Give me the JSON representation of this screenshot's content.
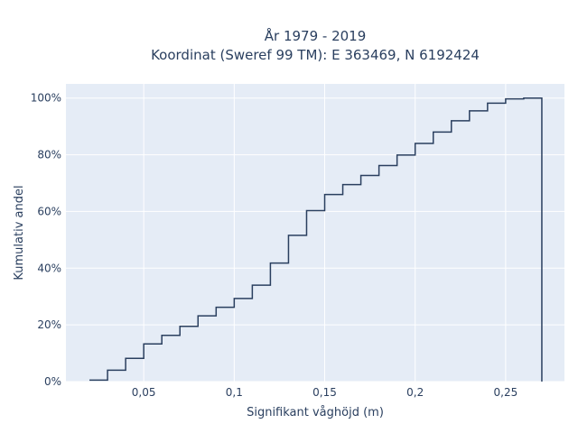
{
  "chart_data": {
    "type": "line",
    "step": true,
    "title": "År 1979 - 2019",
    "subtitle": "Koordinat (Sweref 99 TM): E 363469, N 6192424",
    "xlabel": "Signifikant våghöjd (m)",
    "ylabel": "Kumulativ andel",
    "xlim": [
      0.007,
      0.2825
    ],
    "ylim": [
      0,
      1.05
    ],
    "x_ticks": [
      {
        "value": 0.05,
        "label": "0,05"
      },
      {
        "value": 0.1,
        "label": "0,1"
      },
      {
        "value": 0.15,
        "label": "0,15"
      },
      {
        "value": 0.2,
        "label": "0,2"
      },
      {
        "value": 0.25,
        "label": "0,25"
      }
    ],
    "y_ticks": [
      {
        "value": 0,
        "label": "0%"
      },
      {
        "value": 0.2,
        "label": "20%"
      },
      {
        "value": 0.4,
        "label": "40%"
      },
      {
        "value": 0.6,
        "label": "60%"
      },
      {
        "value": 0.8,
        "label": "80%"
      },
      {
        "value": 1.0,
        "label": "100%"
      }
    ],
    "grid": true,
    "colors": {
      "line": "#2a3f5f",
      "plot_bg": "#e5ecf6",
      "grid": "#ffffff",
      "text": "#2a3f5f"
    },
    "bins": [
      {
        "x0": 0.02,
        "x1": 0.03,
        "y": 0.005
      },
      {
        "x0": 0.03,
        "x1": 0.04,
        "y": 0.04
      },
      {
        "x0": 0.04,
        "x1": 0.05,
        "y": 0.082
      },
      {
        "x0": 0.05,
        "x1": 0.06,
        "y": 0.133
      },
      {
        "x0": 0.06,
        "x1": 0.07,
        "y": 0.163
      },
      {
        "x0": 0.07,
        "x1": 0.08,
        "y": 0.195
      },
      {
        "x0": 0.08,
        "x1": 0.09,
        "y": 0.232
      },
      {
        "x0": 0.09,
        "x1": 0.1,
        "y": 0.262
      },
      {
        "x0": 0.1,
        "x1": 0.11,
        "y": 0.293
      },
      {
        "x0": 0.11,
        "x1": 0.12,
        "y": 0.34
      },
      {
        "x0": 0.12,
        "x1": 0.13,
        "y": 0.418
      },
      {
        "x0": 0.13,
        "x1": 0.14,
        "y": 0.516
      },
      {
        "x0": 0.14,
        "x1": 0.15,
        "y": 0.603
      },
      {
        "x0": 0.15,
        "x1": 0.16,
        "y": 0.66
      },
      {
        "x0": 0.16,
        "x1": 0.17,
        "y": 0.695
      },
      {
        "x0": 0.17,
        "x1": 0.18,
        "y": 0.727
      },
      {
        "x0": 0.18,
        "x1": 0.19,
        "y": 0.762
      },
      {
        "x0": 0.19,
        "x1": 0.2,
        "y": 0.799
      },
      {
        "x0": 0.2,
        "x1": 0.21,
        "y": 0.84
      },
      {
        "x0": 0.21,
        "x1": 0.22,
        "y": 0.88
      },
      {
        "x0": 0.22,
        "x1": 0.23,
        "y": 0.92
      },
      {
        "x0": 0.23,
        "x1": 0.24,
        "y": 0.955
      },
      {
        "x0": 0.24,
        "x1": 0.25,
        "y": 0.982
      },
      {
        "x0": 0.25,
        "x1": 0.26,
        "y": 0.997
      },
      {
        "x0": 0.26,
        "x1": 0.27,
        "y": 1.0
      }
    ]
  }
}
